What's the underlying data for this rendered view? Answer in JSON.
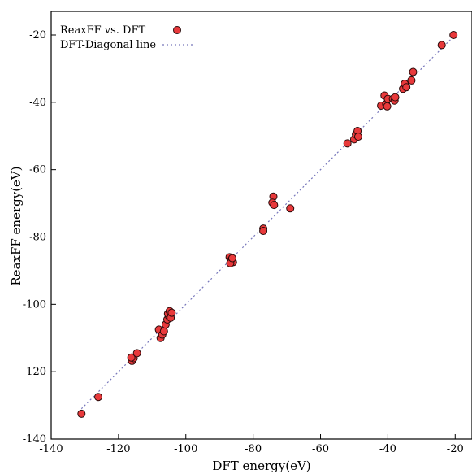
{
  "chart_data": {
    "type": "scatter",
    "xlabel": "DFT energy(eV)",
    "ylabel": "ReaxFF energy(eV)",
    "xlim": [
      -140,
      -15
    ],
    "ylim": [
      -140,
      -13
    ],
    "x_ticks": [
      -140,
      -120,
      -100,
      -80,
      -60,
      -40,
      -20
    ],
    "y_ticks": [
      -140,
      -120,
      -100,
      -80,
      -60,
      -40,
      -20
    ],
    "grid": false,
    "legend_position": "top-left",
    "series": [
      {
        "name": "ReaxFF vs. DFT",
        "kind": "points",
        "color": "#e8393b",
        "edge_color": "#2a0a0a",
        "points": [
          [
            -131.0,
            -132.5
          ],
          [
            -126.0,
            -127.5
          ],
          [
            -116.0,
            -116.8
          ],
          [
            -115.5,
            -116.0
          ],
          [
            -116.2,
            -115.8
          ],
          [
            -114.5,
            -114.5
          ],
          [
            -108.0,
            -107.5
          ],
          [
            -107.5,
            -110.0
          ],
          [
            -107.0,
            -109.0
          ],
          [
            -106.5,
            -108.0
          ],
          [
            -106.0,
            -106.0
          ],
          [
            -105.5,
            -104.5
          ],
          [
            -105.0,
            -103.5
          ],
          [
            -105.3,
            -102.8
          ],
          [
            -104.8,
            -102.0
          ],
          [
            -104.5,
            -104.0
          ],
          [
            -104.2,
            -102.5
          ],
          [
            -87.0,
            -86.0
          ],
          [
            -86.5,
            -86.8
          ],
          [
            -86.0,
            -87.5
          ],
          [
            -86.8,
            -87.8
          ],
          [
            -86.2,
            -86.3
          ],
          [
            -77.0,
            -77.5
          ],
          [
            -77.0,
            -78.2
          ],
          [
            -74.0,
            -68.0
          ],
          [
            -74.3,
            -69.8
          ],
          [
            -73.8,
            -70.5
          ],
          [
            -69.0,
            -71.5
          ],
          [
            -52.0,
            -52.2
          ],
          [
            -50.0,
            -51.0
          ],
          [
            -49.5,
            -49.5
          ],
          [
            -49.0,
            -48.5
          ],
          [
            -48.8,
            -50.2
          ],
          [
            -42.0,
            -41.0
          ],
          [
            -41.0,
            -38.0
          ],
          [
            -40.5,
            -40.5
          ],
          [
            -40.0,
            -39.0
          ],
          [
            -40.2,
            -41.2
          ],
          [
            -38.5,
            -39.0
          ],
          [
            -38.0,
            -39.5
          ],
          [
            -37.8,
            -38.5
          ],
          [
            -35.5,
            -36.0
          ],
          [
            -35.0,
            -34.5
          ],
          [
            -34.5,
            -35.5
          ],
          [
            -33.0,
            -33.5
          ],
          [
            -32.5,
            -31.0
          ],
          [
            -24.0,
            -23.0
          ],
          [
            -20.5,
            -20.0
          ]
        ]
      },
      {
        "name": "DFT-Diagonal line",
        "kind": "line",
        "color": "#7777bb",
        "points": [
          [
            -131,
            -131
          ],
          [
            -20,
            -20
          ]
        ]
      }
    ]
  }
}
